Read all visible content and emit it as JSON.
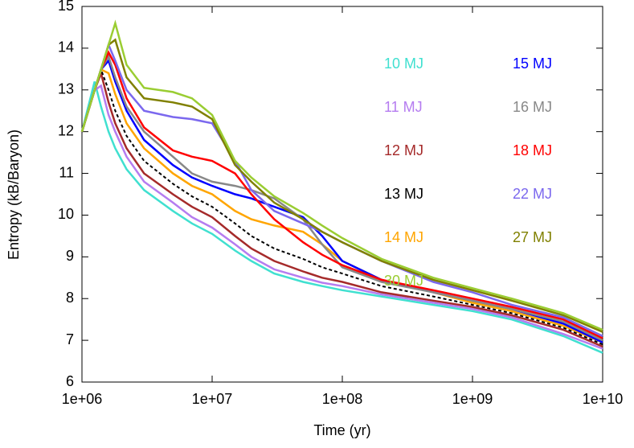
{
  "chart_data": {
    "type": "line",
    "xlabel": "Time (yr)",
    "ylabel": "Entropy (kB/Baryon)",
    "xscale": "log",
    "x": [
      1000000,
      1250000,
      1400000,
      1600000,
      1800000,
      2200000,
      3000000,
      5000000,
      7000000,
      10000000,
      15000000,
      20000000,
      30000000,
      50000000,
      70000000,
      100000000,
      200000000,
      500000000,
      1000000000,
      2000000000,
      5000000000,
      10000000000
    ],
    "xlim": [
      1000000,
      10000000000
    ],
    "xticks": [
      {
        "value": 1000000,
        "label": "1e+06"
      },
      {
        "value": 10000000,
        "label": "1e+07"
      },
      {
        "value": 100000000,
        "label": "1e+08"
      },
      {
        "value": 1000000000,
        "label": "1e+09"
      },
      {
        "value": 10000000000,
        "label": "1e+10"
      }
    ],
    "ylim": [
      6,
      15
    ],
    "yticks": [
      6,
      7,
      8,
      9,
      10,
      11,
      12,
      13,
      14,
      15
    ],
    "series": [
      {
        "name": "10 MJ",
        "color": "#40e0d0",
        "values": [
          12,
          13.2,
          12.6,
          12.0,
          11.6,
          11.1,
          10.6,
          10.1,
          9.8,
          9.55,
          9.15,
          8.9,
          8.6,
          8.4,
          8.3,
          8.2,
          8.05,
          7.85,
          7.7,
          7.5,
          7.1,
          6.7
        ]
      },
      {
        "name": "11 MJ",
        "color": "#b57cf0",
        "values": [
          12,
          12.99,
          13.1,
          12.4,
          12.0,
          11.4,
          10.8,
          10.3,
          9.95,
          9.7,
          9.3,
          9.0,
          8.7,
          8.5,
          8.38,
          8.3,
          8.1,
          7.9,
          7.75,
          7.55,
          7.15,
          6.8
        ]
      },
      {
        "name": "12 MJ",
        "color": "#a52a2a",
        "values": [
          12,
          12.99,
          13.4,
          12.7,
          12.2,
          11.6,
          11.0,
          10.5,
          10.2,
          9.95,
          9.5,
          9.2,
          8.9,
          8.65,
          8.5,
          8.4,
          8.15,
          7.95,
          7.8,
          7.6,
          7.25,
          6.85
        ]
      },
      {
        "name": "13 MJ",
        "color": "#000000",
        "dashed": true,
        "values": [
          12,
          12.99,
          13.49,
          13.0,
          12.5,
          11.9,
          11.3,
          10.75,
          10.45,
          10.2,
          9.8,
          9.5,
          9.2,
          8.95,
          8.75,
          8.6,
          8.3,
          8.05,
          7.85,
          7.65,
          7.3,
          6.9
        ]
      },
      {
        "name": "14 MJ",
        "color": "#ffa500",
        "values": [
          12,
          12.99,
          13.49,
          13.4,
          12.9,
          12.2,
          11.6,
          11.0,
          10.7,
          10.5,
          10.1,
          9.9,
          9.75,
          9.6,
          9.3,
          8.9,
          8.45,
          8.15,
          7.9,
          7.7,
          7.35,
          6.95
        ]
      },
      {
        "name": "15 MJ",
        "color": "#0000ff",
        "values": [
          12,
          12.99,
          13.49,
          13.7,
          13.2,
          12.5,
          11.8,
          11.2,
          10.9,
          10.7,
          10.5,
          10.4,
          10.2,
          9.95,
          9.5,
          8.9,
          8.45,
          8.15,
          7.95,
          7.75,
          7.4,
          6.95
        ]
      },
      {
        "name": "16 MJ",
        "color": "#888888",
        "values": [
          12,
          12.99,
          13.49,
          13.8,
          13.3,
          12.6,
          12.0,
          11.4,
          11.0,
          10.8,
          10.7,
          10.6,
          10.4,
          9.9,
          9.3,
          8.75,
          8.4,
          8.15,
          7.95,
          7.75,
          7.45,
          7.0
        ]
      },
      {
        "name": "18 MJ",
        "color": "#ff0000",
        "values": [
          12,
          12.99,
          13.49,
          13.9,
          13.6,
          12.8,
          12.1,
          11.55,
          11.4,
          11.3,
          11.0,
          10.5,
          9.9,
          9.35,
          9.05,
          8.8,
          8.45,
          8.2,
          8.0,
          7.8,
          7.5,
          7.05
        ]
      },
      {
        "name": "22 MJ",
        "color": "#7b68ee",
        "values": [
          12,
          12.99,
          13.49,
          14.08,
          13.7,
          13.0,
          12.5,
          12.35,
          12.3,
          12.2,
          11.3,
          10.6,
          10.1,
          9.8,
          9.6,
          9.35,
          8.9,
          8.4,
          8.15,
          7.85,
          7.55,
          7.1
        ]
      },
      {
        "name": "27 MJ",
        "color": "#808000",
        "values": [
          12,
          12.99,
          13.49,
          14.08,
          14.2,
          13.3,
          12.8,
          12.7,
          12.6,
          12.3,
          11.2,
          10.8,
          10.3,
          9.9,
          9.6,
          9.35,
          8.9,
          8.45,
          8.2,
          7.95,
          7.6,
          7.2
        ]
      },
      {
        "name": "30 MJ",
        "color": "#9acd32",
        "values": [
          12,
          12.99,
          13.49,
          14.08,
          14.6,
          13.6,
          13.05,
          12.95,
          12.8,
          12.4,
          11.3,
          10.9,
          10.45,
          10.05,
          9.75,
          9.45,
          8.95,
          8.5,
          8.25,
          8.0,
          7.65,
          7.25
        ]
      }
    ]
  }
}
